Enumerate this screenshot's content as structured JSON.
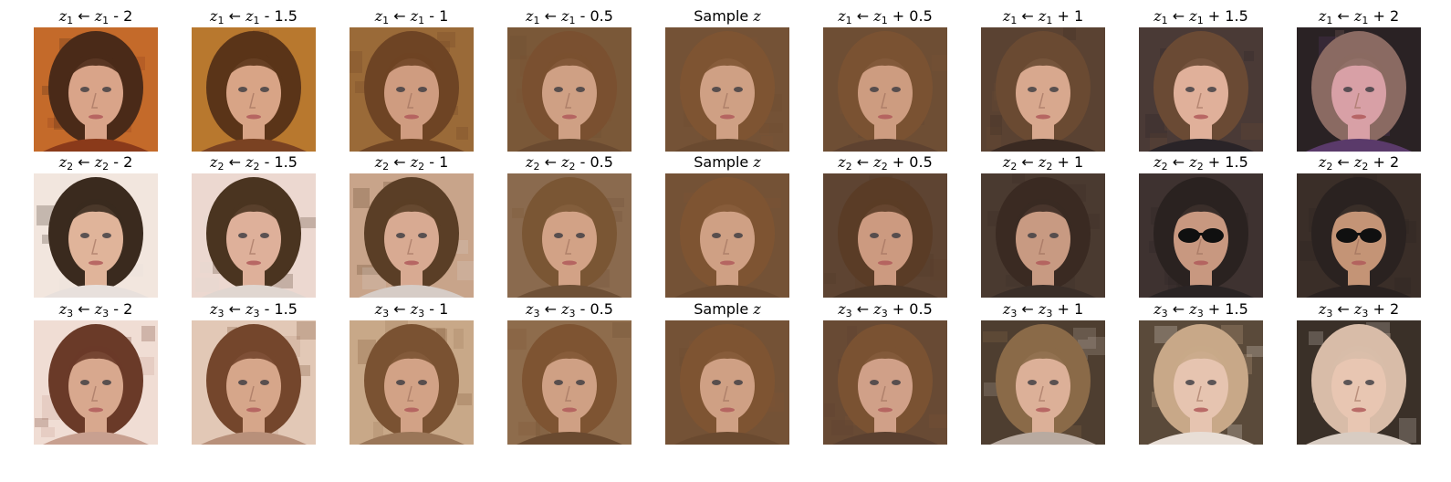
{
  "figure": {
    "rows": [
      {
        "latent": "z1",
        "panels": [
          {
            "title": "z₁ ← z₁ - 2",
            "image": "face-image",
            "tone": {
              "bg": "#c46a2a",
              "hair": "#4a2a18",
              "skin": "#d9a489",
              "clothing": "#8a3a1a"
            },
            "glasses": false
          },
          {
            "title": "z₁ ← z₁ - 1.5",
            "image": "face-image",
            "tone": {
              "bg": "#b8782e",
              "hair": "#5a3418",
              "skin": "#d8a486",
              "clothing": "#7a4222"
            },
            "glasses": false
          },
          {
            "title": "z₁ ← z₁ - 1",
            "image": "face-image",
            "tone": {
              "bg": "#9a6a38",
              "hair": "#6e4424",
              "skin": "#cf9c80",
              "clothing": "#6e4424"
            },
            "glasses": false
          },
          {
            "title": "z₁ ← z₁ - 0.5",
            "image": "face-image",
            "tone": {
              "bg": "#7a5838",
              "hair": "#7a5030",
              "skin": "#cfa084",
              "clothing": "#6a4a30"
            },
            "glasses": false
          },
          {
            "title": "Sample z",
            "image": "face-image",
            "tone": {
              "bg": "#745236",
              "hair": "#7e5432",
              "skin": "#cfa084",
              "clothing": "#6a4a30"
            },
            "glasses": false
          },
          {
            "title": "z₁ ← z₁ + 0.5",
            "image": "face-image",
            "tone": {
              "bg": "#6e4e34",
              "hair": "#7a5232",
              "skin": "#cd9c80",
              "clothing": "#5e4230"
            },
            "glasses": false
          },
          {
            "title": "z₁ ← z₁ + 1",
            "image": "face-image",
            "tone": {
              "bg": "#5a4232",
              "hair": "#6a4a32",
              "skin": "#d8a88e",
              "clothing": "#3a2a22"
            },
            "glasses": false
          },
          {
            "title": "z₁ ← z₁ + 1.5",
            "image": "face-image",
            "tone": {
              "bg": "#4a3a36",
              "hair": "#6a4a34",
              "skin": "#e0b09a",
              "clothing": "#2a2428"
            },
            "glasses": false
          },
          {
            "title": "z₁ ← z₁ + 2",
            "image": "face-image",
            "tone": {
              "bg": "#2a2224",
              "hair": "#8a6a62",
              "skin": "#d8a0a6",
              "clothing": "#5a3a6a"
            },
            "glasses": false
          }
        ]
      },
      {
        "latent": "z2",
        "panels": [
          {
            "title": "z₂ ← z₂ - 2",
            "image": "face-image",
            "tone": {
              "bg": "#f2e6de",
              "hair": "#3a2a1e",
              "skin": "#e0b49a",
              "clothing": "#e8e0dc"
            },
            "glasses": false
          },
          {
            "title": "z₂ ← z₂ - 1.5",
            "image": "face-image",
            "tone": {
              "bg": "#ecd8d0",
              "hair": "#4a3420",
              "skin": "#deb09a",
              "clothing": "#e0d6d0"
            },
            "glasses": false
          },
          {
            "title": "z₂ ← z₂ - 1",
            "image": "face-image",
            "tone": {
              "bg": "#c8a48a",
              "hair": "#5a3e26",
              "skin": "#d8aa92",
              "clothing": "#d6ccc6"
            },
            "glasses": false
          },
          {
            "title": "z₂ ← z₂ - 0.5",
            "image": "face-image",
            "tone": {
              "bg": "#8a6a4e",
              "hair": "#7a5634",
              "skin": "#d2a286",
              "clothing": "#6e5036"
            },
            "glasses": false
          },
          {
            "title": "Sample z",
            "image": "face-image",
            "tone": {
              "bg": "#745236",
              "hair": "#7e5432",
              "skin": "#cfa084",
              "clothing": "#6a4a30"
            },
            "glasses": false
          },
          {
            "title": "z₂ ← z₂ + 0.5",
            "image": "face-image",
            "tone": {
              "bg": "#5e4432",
              "hair": "#5a3c26",
              "skin": "#cc9a80",
              "clothing": "#4e3828"
            },
            "glasses": false
          },
          {
            "title": "z₂ ← z₂ + 1",
            "image": "face-image",
            "tone": {
              "bg": "#4a3a30",
              "hair": "#3a2a22",
              "skin": "#c89a82",
              "clothing": "#3a2e28"
            },
            "glasses": false
          },
          {
            "title": "z₂ ← z₂ + 1.5",
            "image": "face-image",
            "tone": {
              "bg": "#3e3230",
              "hair": "#2a2220",
              "skin": "#c89880",
              "clothing": "#2a2424"
            },
            "glasses": true
          },
          {
            "title": "z₂ ← z₂ + 2",
            "image": "face-image",
            "tone": {
              "bg": "#3a2e28",
              "hair": "#2a2220",
              "skin": "#c49476",
              "clothing": "#2a2220"
            },
            "glasses": true
          }
        ]
      },
      {
        "latent": "z3",
        "panels": [
          {
            "title": "z₃ ← z₃ - 2",
            "image": "face-image",
            "tone": {
              "bg": "#f0ddd4",
              "hair": "#6a3a28",
              "skin": "#d8a88e",
              "clothing": "#c8a090"
            },
            "glasses": false
          },
          {
            "title": "z₃ ← z₃ - 1.5",
            "image": "face-image",
            "tone": {
              "bg": "#e2c8b6",
              "hair": "#74462c",
              "skin": "#d6a68a",
              "clothing": "#b8907a"
            },
            "glasses": false
          },
          {
            "title": "z₃ ← z₃ - 1",
            "image": "face-image",
            "tone": {
              "bg": "#c8a888",
              "hair": "#7a5232",
              "skin": "#d2a286",
              "clothing": "#9a7658"
            },
            "glasses": false
          },
          {
            "title": "z₃ ← z₃ - 0.5",
            "image": "face-image",
            "tone": {
              "bg": "#8e6c4c",
              "hair": "#7e5432",
              "skin": "#cfa084",
              "clothing": "#6a4a30"
            },
            "glasses": false
          },
          {
            "title": "Sample z",
            "image": "face-image",
            "tone": {
              "bg": "#745236",
              "hair": "#7e5432",
              "skin": "#cfa084",
              "clothing": "#6a4a30"
            },
            "glasses": false
          },
          {
            "title": "z₃ ← z₃ + 0.5",
            "image": "face-image",
            "tone": {
              "bg": "#684a34",
              "hair": "#7a5232",
              "skin": "#d0a088",
              "clothing": "#5a4030"
            },
            "glasses": false
          },
          {
            "title": "z₃ ← z₃ + 1",
            "image": "face-image",
            "tone": {
              "bg": "#4e3e30",
              "hair": "#8a6a48",
              "skin": "#dcb098",
              "clothing": "#b8aaa0"
            },
            "glasses": false
          },
          {
            "title": "z₃ ← z₃ + 1.5",
            "image": "face-image",
            "tone": {
              "bg": "#5a4a3a",
              "hair": "#c8a888",
              "skin": "#e6c4b0",
              "clothing": "#e8ded6"
            },
            "glasses": false
          },
          {
            "title": "z₃ ← z₃ + 2",
            "image": "face-image",
            "tone": {
              "bg": "#3a3028",
              "hair": "#d8bca8",
              "skin": "#e8c6b2",
              "clothing": "#d8ccc2"
            },
            "glasses": false
          }
        ]
      }
    ]
  }
}
